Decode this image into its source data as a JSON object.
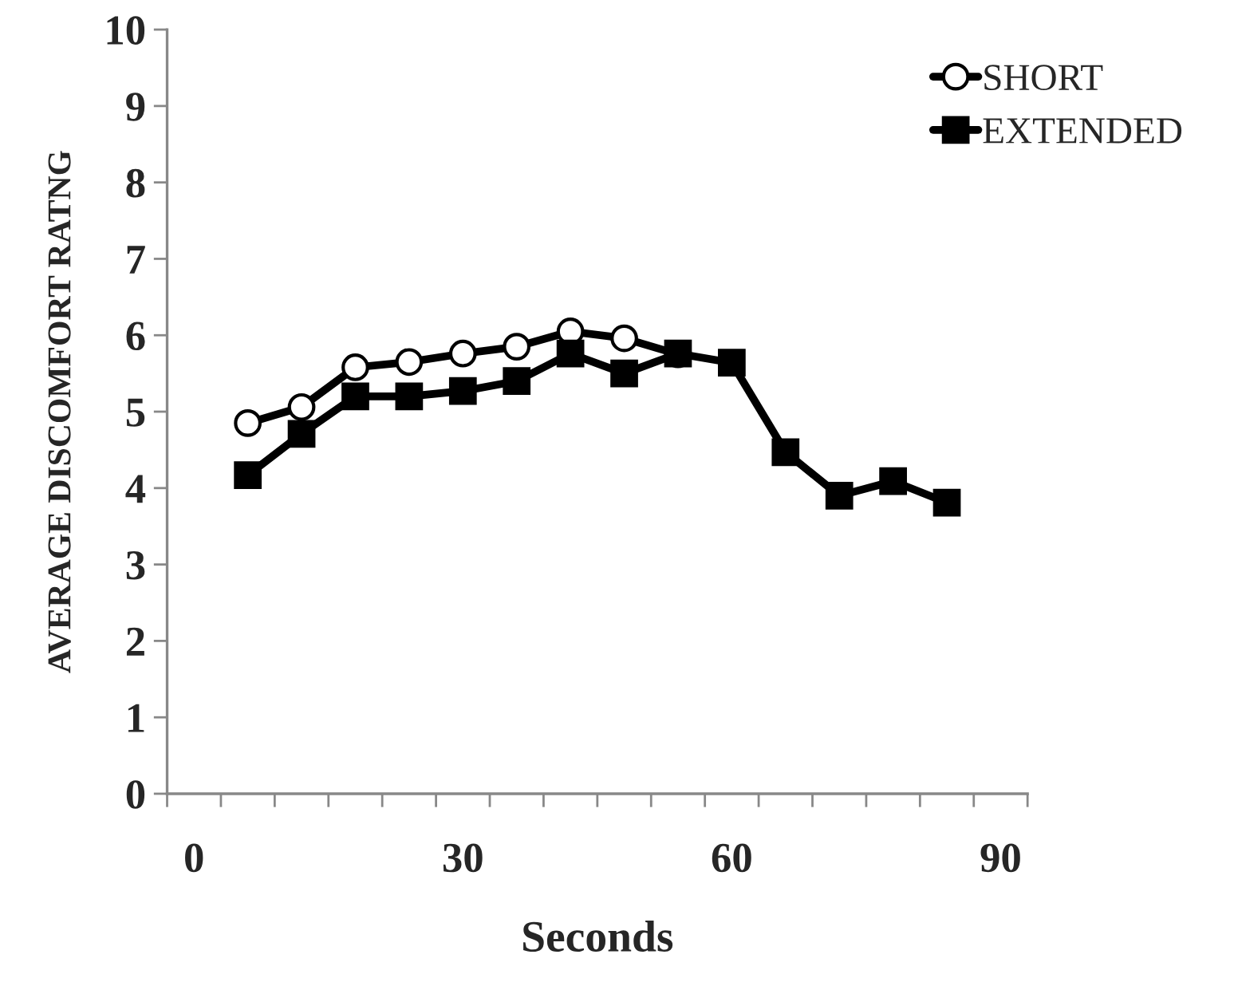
{
  "chart_data": {
    "type": "line",
    "xlabel": "Seconds",
    "ylabel": "AVERAGE DISCOMFORT RATNG",
    "x": [
      6,
      12,
      18,
      24,
      30,
      36,
      42,
      48,
      54,
      60,
      66,
      72,
      78,
      84
    ],
    "series": [
      {
        "name": "SHORT",
        "color": "#000000",
        "marker": "circle",
        "values": [
          4.85,
          5.06,
          5.58,
          5.65,
          5.76,
          5.85,
          6.05,
          5.96,
          5.75,
          null,
          null,
          null,
          null,
          null
        ]
      },
      {
        "name": "EXTENDED",
        "color": "#000000",
        "marker": "square",
        "values": [
          4.17,
          4.71,
          5.2,
          5.2,
          5.27,
          5.4,
          5.76,
          5.5,
          5.76,
          5.64,
          4.47,
          3.9,
          4.09,
          3.81
        ]
      }
    ],
    "xlim": [
      -3,
      93
    ],
    "xticks": [
      0,
      30,
      60,
      90,
      {
        "value": -3,
        "label": null
      },
      {
        "value": 3,
        "label": null
      },
      {
        "value": 9,
        "label": null
      },
      {
        "value": 15,
        "label": null
      },
      {
        "value": 21,
        "label": null
      },
      {
        "value": 27,
        "label": null
      },
      {
        "value": 33,
        "label": null
      },
      {
        "value": 39,
        "label": null
      },
      {
        "value": 45,
        "label": null
      },
      {
        "value": 51,
        "label": null
      },
      {
        "value": 57,
        "label": null
      },
      {
        "value": 63,
        "label": null
      },
      {
        "value": 69,
        "label": null
      },
      {
        "value": 75,
        "label": null
      },
      {
        "value": 81,
        "label": null
      },
      {
        "value": 87,
        "label": null
      },
      {
        "value": 93,
        "label": null
      }
    ],
    "ylim": [
      0,
      10
    ],
    "yticks": [
      0,
      1,
      2,
      3,
      4,
      5,
      6,
      7,
      8,
      9,
      10
    ],
    "grid": false,
    "legend": "top right",
    "line_style": "solid"
  }
}
